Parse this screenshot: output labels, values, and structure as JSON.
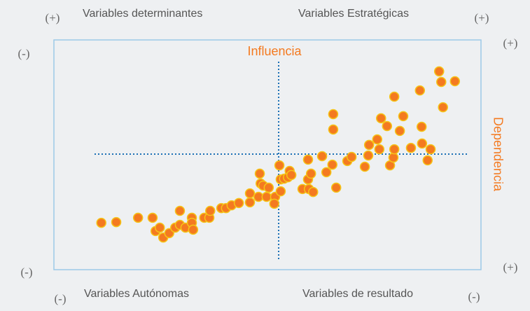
{
  "chart_data": {
    "type": "scatter",
    "quadrant_labels": [
      "Variables determinantes",
      "Variables Estratégicas",
      "Variables Autónomas",
      "Variables de resultado"
    ],
    "signs": [
      "(+)",
      "(+)",
      "(-)",
      "(+)",
      "(-)",
      "(+)",
      "(-)",
      "(-)"
    ],
    "x_title": "Influencia",
    "y_title": "Dependencia",
    "xlim": [
      0,
      100
    ],
    "ylim": [
      0,
      100
    ],
    "series": [
      {
        "color": "#f47a20",
        "edge": "#f5c518",
        "x": [
          11.1,
          14.6,
          19.7,
          23.1,
          23.8,
          24.8,
          25.6,
          27.0,
          28.4,
          29.5,
          29.5,
          30.8,
          32.3,
          32.3,
          32.6,
          35.2,
          36.4,
          36.6,
          39.2,
          40.3,
          41.6,
          43.3,
          45.9,
          45.9,
          47.9,
          48.2,
          48.4,
          49.0,
          49.8,
          50.3,
          51.8,
          51.6,
          52.8,
          53.1,
          53.1,
          53.9,
          54.8,
          55.2,
          55.6,
          58.2,
          59.5,
          59.5,
          59.7,
          60.2,
          60.7,
          62.8,
          63.8,
          65.4,
          65.4,
          65.2,
          66.1,
          68.7,
          69.7,
          72.8,
          73.6,
          73.8,
          75.7,
          76.2,
          76.6,
          78.0,
          78.7,
          79.5,
          79.7,
          79.7,
          81.0,
          81.8,
          83.6,
          85.7,
          86.1,
          86.2,
          87.5,
          88.2,
          90.2,
          90.7,
          91.1,
          93.9
        ],
        "values": [
          20.4,
          20.7,
          22.6,
          22.6,
          16.8,
          18.3,
          14.0,
          15.9,
          18.3,
          25.6,
          19.5,
          18.3,
          22.6,
          20.4,
          17.4,
          22.6,
          22.6,
          25.6,
          26.8,
          26.8,
          28.0,
          29.0,
          29.3,
          33.2,
          31.7,
          41.8,
          37.5,
          36.6,
          31.7,
          35.7,
          31.7,
          28.7,
          45.4,
          39.3,
          34.1,
          39.6,
          40.2,
          43.0,
          41.2,
          35.1,
          47.9,
          39.3,
          35.1,
          41.8,
          33.8,
          49.4,
          42.4,
          67.7,
          61.0,
          45.7,
          35.7,
          47.3,
          49.1,
          44.8,
          49.7,
          54.3,
          56.7,
          52.4,
          65.9,
          62.5,
          45.4,
          48.8,
          52.4,
          75.3,
          60.4,
          66.8,
          53.0,
          78.0,
          62.2,
          54.9,
          47.6,
          52.4,
          86.3,
          81.7,
          70.7,
          82.0
        ]
      }
    ]
  }
}
